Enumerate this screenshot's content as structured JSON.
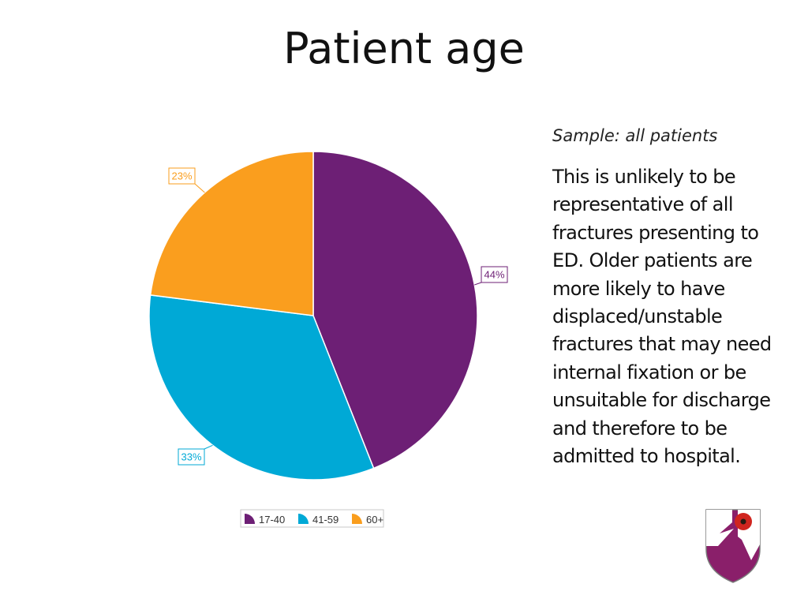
{
  "page": {
    "title": "Patient age",
    "subtitle": "Sample: all patients",
    "body_lines": [
      "This is unlikely to be",
      "representative of all",
      "fractures  presenting to",
      "ED. Older patients are",
      "more likely to have",
      "displaced/unstable",
      "fractures that may need",
      "internal fixation or be",
      "unsuitable for discharge",
      "and therefore to be",
      "admitted to hospital."
    ]
  },
  "chart_data": {
    "type": "pie",
    "title": "",
    "series": [
      {
        "name": "17-40",
        "value": 44,
        "label": "44%",
        "color": "#6d1f75"
      },
      {
        "name": "41-59",
        "value": 33,
        "label": "33%",
        "color": "#00a9d6"
      },
      {
        "name": "60+",
        "value": 23,
        "label": "23%",
        "color": "#fa9e1e"
      }
    ],
    "legend_position": "bottom",
    "start_angle_deg": 0,
    "direction": "clockwise"
  },
  "logo": {
    "colors": {
      "field": "#8a1f6a",
      "poppy": "#d0251f",
      "border": "#7a7a7a"
    }
  }
}
